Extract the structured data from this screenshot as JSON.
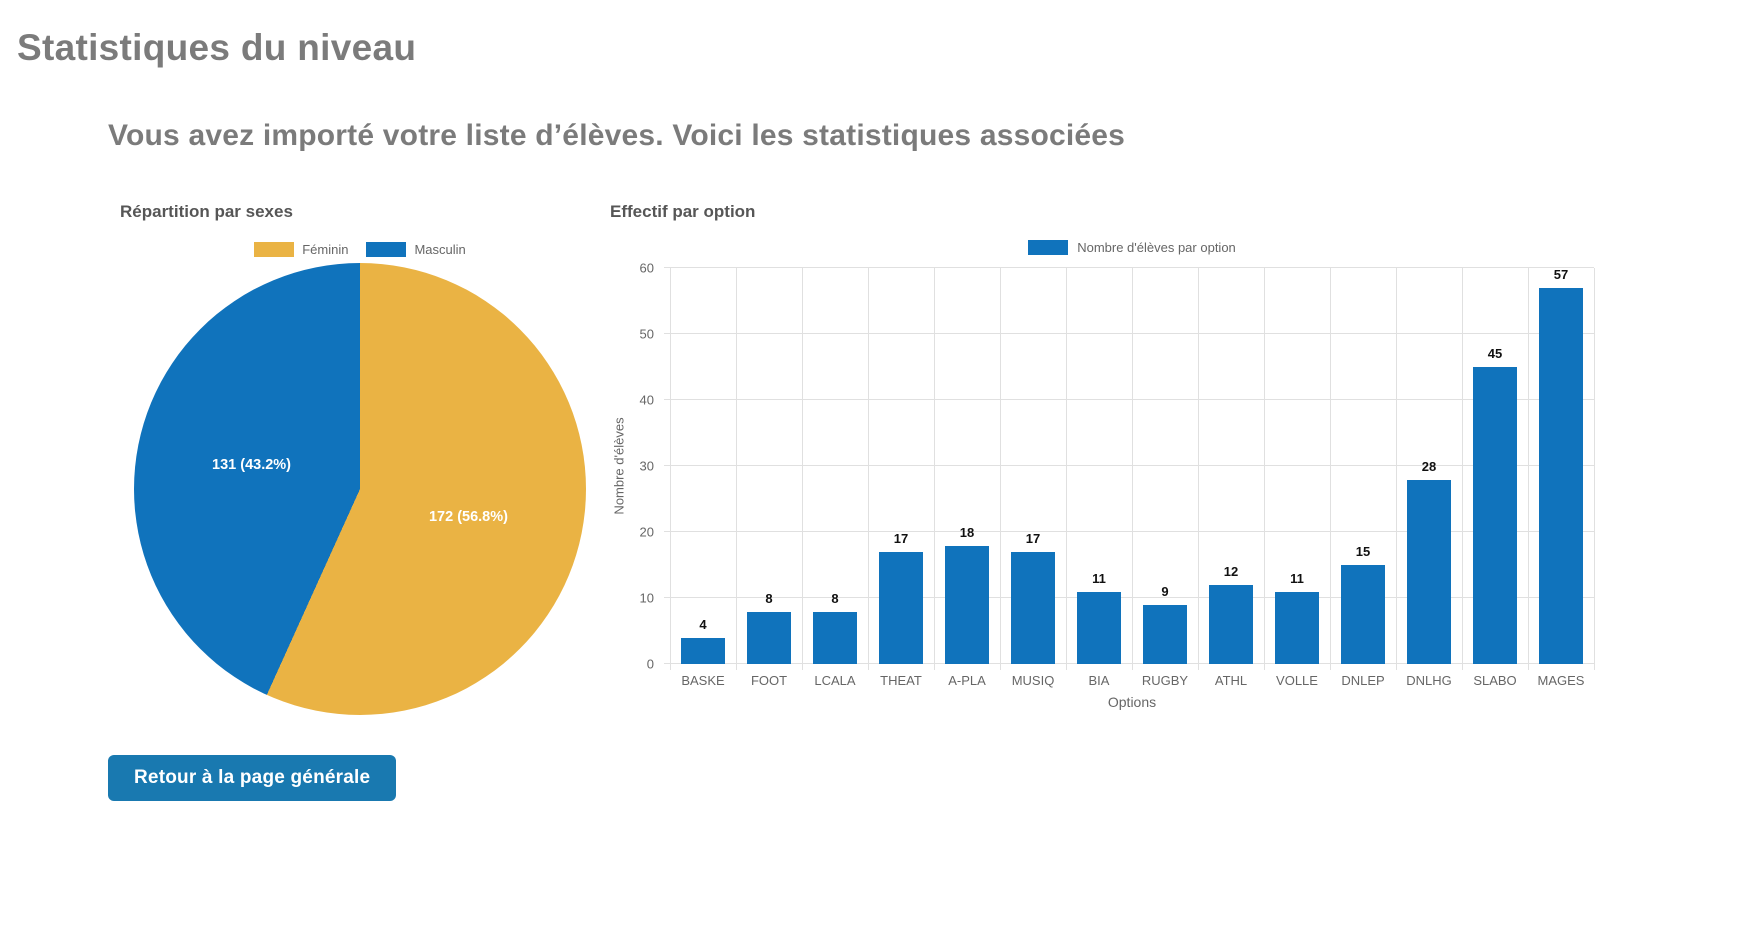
{
  "page": {
    "title": "Statistiques du niveau",
    "subtitle": "Vous avez importé votre liste d’élèves. Voici les statistiques associées",
    "back_button_label": "Retour à la page générale"
  },
  "colors": {
    "chart_blue": "#1073BC",
    "chart_yellow": "#EAB344",
    "button_blue": "#1979B0",
    "heading_gray": "#7B7B7B",
    "chart_title_gray": "#565656",
    "axis_text_gray": "#666666",
    "grid_gray": "#E0E0E0"
  },
  "chart_data": [
    {
      "type": "pie",
      "title": "Répartition par sexes",
      "labels": [
        "Féminin",
        "Masculin"
      ],
      "values": [
        172,
        131
      ],
      "percents": [
        56.8,
        43.2
      ],
      "annotations": [
        "172 (56.8%)",
        "131 (43.2%)"
      ],
      "colors": [
        "#EAB344",
        "#1073BC"
      ],
      "legend_position": "top",
      "start_angle": "top",
      "direction": "clockwise"
    },
    {
      "type": "bar",
      "title": "Effectif par option",
      "legend": [
        "Nombre d'élèves par option"
      ],
      "legend_position": "top",
      "categories": [
        "BASKE",
        "FOOT",
        "LCALA",
        "THEAT",
        "A-PLA",
        "MUSIQ",
        "BIA",
        "RUGBY",
        "ATHL",
        "VOLLE",
        "DNLEP",
        "DNLHG",
        "SLABO",
        "MAGES"
      ],
      "values": [
        4,
        8,
        8,
        17,
        18,
        17,
        11,
        9,
        12,
        11,
        15,
        28,
        45,
        57
      ],
      "xlabel": "Options",
      "ylabel": "Nombre d'élèves",
      "ylim": [
        0,
        60
      ],
      "yticks": [
        0,
        10,
        20,
        30,
        40,
        50,
        60
      ],
      "grid": true,
      "bar_color": "#1073BC"
    }
  ]
}
